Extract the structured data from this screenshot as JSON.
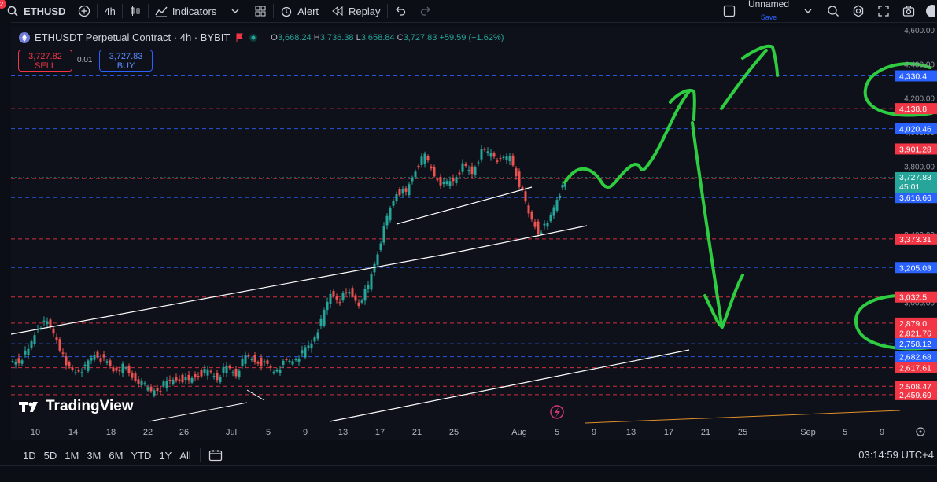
{
  "toolbar": {
    "symbol": "ETHUSD",
    "interval": "4h",
    "indicators_label": "Indicators",
    "alert_label": "Alert",
    "replay_label": "Replay",
    "layout_name": "Unnamed",
    "layout_save": "Save",
    "notification_count": "2"
  },
  "legend": {
    "title": "ETHUSDT Perpetual Contract · 4h · BYBIT",
    "open_key": "O",
    "open": "3,668.24",
    "high_key": "H",
    "high": "3,736.38",
    "low_key": "L",
    "low": "3,658.84",
    "close_key": "C",
    "close": "3,727.83",
    "change": "+59.59 (+1.62%)"
  },
  "trade": {
    "sell_price": "3,727.82",
    "sell_label": "SELL",
    "spread": "0.01",
    "buy_price": "3,727.83",
    "buy_label": "BUY"
  },
  "price_axis": {
    "ticks": [
      "4,600.00",
      "4,400.00",
      "4,200.00",
      "4,000.00",
      "3,800.00",
      "3,400.00",
      "3,000.00",
      "2,800.00"
    ],
    "levels": [
      {
        "label": "4,330.4",
        "color": "#2962ff",
        "price": 4330
      },
      {
        "label": "4,138.8",
        "color": "#f23645",
        "price": 4138
      },
      {
        "label": "4,020.46",
        "color": "#2962ff",
        "price": 4020
      },
      {
        "label": "3,901.28",
        "color": "#f23645",
        "price": 3901
      },
      {
        "label": "3,727.10",
        "color": "#f23645",
        "price": 3727
      },
      {
        "label": "3,616.66",
        "color": "#2962ff",
        "price": 3616
      },
      {
        "label": "3,373.31",
        "color": "#f23645",
        "price": 3373
      },
      {
        "label": "3,205.03",
        "color": "#2962ff",
        "price": 3205
      },
      {
        "label": "3,032.5",
        "color": "#f23645",
        "price": 3032
      },
      {
        "label": "2,879.0",
        "color": "#f23645",
        "price": 2879
      },
      {
        "label": "2,821.76",
        "color": "#f23645",
        "price": 2821
      },
      {
        "label": "2,758.12",
        "color": "#2962ff",
        "price": 2758
      },
      {
        "label": "2,682.68",
        "color": "#2962ff",
        "price": 2682
      },
      {
        "label": "2,617.61",
        "color": "#f23645",
        "price": 2617
      },
      {
        "label": "2,508.47",
        "color": "#f23645",
        "price": 2508
      },
      {
        "label": "2,459.69",
        "color": "#f23645",
        "price": 2459
      }
    ],
    "current_price": "3,727.83",
    "countdown": "45:01"
  },
  "time_axis": {
    "labels": [
      "10",
      "14",
      "18",
      "22",
      "26",
      "Jul",
      "5",
      "9",
      "13",
      "17",
      "21",
      "25",
      "Aug",
      "5",
      "9",
      "13",
      "17",
      "21",
      "25",
      "Sep",
      "5",
      "9"
    ]
  },
  "timeframes": [
    "1D",
    "5D",
    "1M",
    "3M",
    "6M",
    "YTD",
    "1Y",
    "All"
  ],
  "clock": "03:14:59 UTC+4",
  "brand": "TradingView",
  "colors": {
    "up": "#26a69a",
    "down": "#ef5350",
    "annotation": "#2ecc40",
    "background": "#0f111a"
  }
}
